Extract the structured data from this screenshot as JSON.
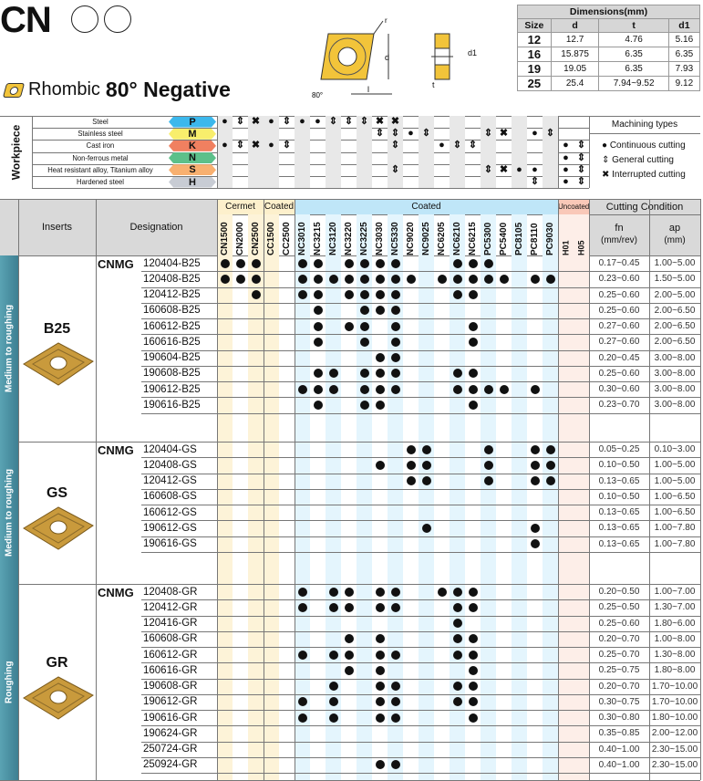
{
  "header": {
    "title": "CN",
    "shape": "Rhombic",
    "angle_label": "80° Negative"
  },
  "diagram": {
    "labels": {
      "r": "r",
      "d": "d",
      "d1": "d1",
      "l": "l",
      "t": "t",
      "angle": "80°"
    }
  },
  "dimensions": {
    "title": "Dimensions(mm)",
    "columns": [
      "Size",
      "d",
      "t",
      "d1"
    ],
    "rows": [
      [
        "12",
        "12.7",
        "4.76",
        "5.16"
      ],
      [
        "16",
        "15.875",
        "6.35",
        "6.35"
      ],
      [
        "19",
        "19.05",
        "6.35",
        "7.93"
      ],
      [
        "25",
        "25.4",
        "7.94~9.52",
        "9.12"
      ]
    ]
  },
  "workpiece": {
    "label": "Workpiece",
    "machining_types_title": "Machining types",
    "legend": [
      {
        "symbol": "●",
        "label": "Continuous cutting"
      },
      {
        "symbol": "⇕",
        "label": "General cutting"
      },
      {
        "symbol": "✖",
        "label": "Interrupted cutting"
      }
    ],
    "rows": [
      {
        "name": "Steel",
        "code": "P",
        "color": "#3cb8ec",
        "marks": {
          "CN1500": "●",
          "CN2000": "⇕",
          "CN2500": "✖",
          "CC1500": "●",
          "CC2500": "⇕",
          "NC3010": "●",
          "NC3215": "●",
          "NC3120": "⇕",
          "NC3220": "⇕",
          "NC3225": "⇕",
          "NC3030": "✖",
          "NC5330": "✖"
        }
      },
      {
        "name": "Stainless steel",
        "code": "M",
        "color": "#f8ee6c",
        "marks": {
          "NC3030": "⇕",
          "NC5330": "⇕",
          "NC9020": "●",
          "NC9025": "⇕",
          "PC5300": "⇕",
          "PC5400": "✖",
          "PC8110": "●",
          "PC9030": "⇕"
        }
      },
      {
        "name": "Cast iron",
        "code": "K",
        "color": "#f08060",
        "marks": {
          "CN1500": "●",
          "CN2000": "⇕",
          "CN2500": "✖",
          "CC1500": "●",
          "CC2500": "⇕",
          "NC5330": "⇕",
          "NC6205": "●",
          "NC6210": "⇕",
          "NC6215": "⇕",
          "H01": "●",
          "H05": "⇕"
        }
      },
      {
        "name": "Non-ferrous metal",
        "code": "N",
        "color": "#5cc08a",
        "marks": {
          "H01": "●",
          "H05": "⇕"
        }
      },
      {
        "name": "Heat resistant alloy, Titanium alloy",
        "code": "S",
        "color": "#f8b070",
        "marks": {
          "NC5330": "⇕",
          "PC5300": "⇕",
          "PC5400": "✖",
          "PC8105": "●",
          "PC8110": "●",
          "H01": "●",
          "H05": "⇕"
        }
      },
      {
        "name": "Hardened steel",
        "code": "H",
        "color": "#c8ccd4",
        "marks": {
          "PC8110": "⇕",
          "H01": "●",
          "H05": "⇕"
        }
      }
    ]
  },
  "table": {
    "headers": {
      "inserts": "Inserts",
      "designation": "Designation",
      "cutting_condition": "Cutting Condition",
      "fn": "fn",
      "fn_unit": "(mm/rev)",
      "ap": "ap",
      "ap_unit": "(mm)"
    },
    "groups": [
      {
        "label": "Cermet",
        "color": "#fdf0cc",
        "grades": [
          "CN1500",
          "CN2000",
          "CN2500"
        ]
      },
      {
        "label": "Coated",
        "color": "#fdf0cc",
        "grades": [
          "CC1500",
          "CC2500"
        ]
      },
      {
        "label": "Coated",
        "color": "#bfe6f8",
        "grades": [
          "NC3010",
          "NC3215",
          "NC3120",
          "NC3220",
          "NC3225",
          "NC3030",
          "NC5330",
          "NC9020",
          "NC9025",
          "NC6205",
          "NC6210",
          "NC6215",
          "PC5300",
          "PC5400",
          "PC8105",
          "PC8110",
          "PC9030"
        ]
      },
      {
        "label": "Uncoated",
        "color": "#f9c8b8",
        "grades": [
          "H01",
          "H05"
        ]
      }
    ],
    "sections": [
      {
        "application": "Medium to roughing",
        "chipbreaker": "B25",
        "prefix": "CNMG",
        "rows": [
          {
            "code": "120404-B25",
            "grades": [
              "CN1500",
              "CN2000",
              "CN2500",
              "NC3010",
              "NC3215",
              "NC3220",
              "NC3225",
              "NC3030",
              "NC5330",
              "NC6210",
              "NC6215",
              "PC5300"
            ],
            "fn": "0.17~0.45",
            "ap": "1.00~5.00"
          },
          {
            "code": "120408-B25",
            "grades": [
              "CN1500",
              "CN2000",
              "CN2500",
              "NC3010",
              "NC3215",
              "NC3120",
              "NC3220",
              "NC3225",
              "NC3030",
              "NC5330",
              "NC9020",
              "NC6205",
              "NC6210",
              "NC6215",
              "PC5300",
              "PC5400",
              "PC8110",
              "PC9030"
            ],
            "fn": "0.23~0.60",
            "ap": "1.50~5.00"
          },
          {
            "code": "120412-B25",
            "grades": [
              "CN2500",
              "NC3010",
              "NC3215",
              "NC3220",
              "NC3225",
              "NC3030",
              "NC5330",
              "NC6210",
              "NC6215"
            ],
            "fn": "0.25~0.60",
            "ap": "2.00~5.00"
          },
          {
            "code": "160608-B25",
            "grades": [
              "NC3215",
              "NC3225",
              "NC3030",
              "NC5330"
            ],
            "fn": "0.25~0.60",
            "ap": "2.00~6.50"
          },
          {
            "code": "160612-B25",
            "grades": [
              "NC3215",
              "NC3220",
              "NC3225",
              "NC5330",
              "NC6215"
            ],
            "fn": "0.27~0.60",
            "ap": "2.00~6.50"
          },
          {
            "code": "160616-B25",
            "grades": [
              "NC3215",
              "NC3225",
              "NC5330",
              "NC6215"
            ],
            "fn": "0.27~0.60",
            "ap": "2.00~6.50"
          },
          {
            "code": "190604-B25",
            "grades": [
              "NC3030",
              "NC5330"
            ],
            "fn": "0.20~0.45",
            "ap": "3.00~8.00"
          },
          {
            "code": "190608-B25",
            "grades": [
              "NC3215",
              "NC3120",
              "NC3225",
              "NC3030",
              "NC5330",
              "NC6210",
              "NC6215"
            ],
            "fn": "0.25~0.60",
            "ap": "3.00~8.00"
          },
          {
            "code": "190612-B25",
            "grades": [
              "NC3010",
              "NC3215",
              "NC3120",
              "NC3225",
              "NC3030",
              "NC5330",
              "NC6210",
              "NC6215",
              "PC5300",
              "PC5400",
              "PC8110"
            ],
            "fn": "0.30~0.60",
            "ap": "3.00~8.00"
          },
          {
            "code": "190616-B25",
            "grades": [
              "NC3215",
              "NC3225",
              "NC3030",
              "NC6215"
            ],
            "fn": "0.23~0.70",
            "ap": "3.00~8.00"
          }
        ]
      },
      {
        "application": "Medium to roughing",
        "chipbreaker": "GS",
        "prefix": "CNMG",
        "rows": [
          {
            "code": "120404-GS",
            "grades": [
              "NC9020",
              "NC9025",
              "PC5300",
              "PC8110",
              "PC9030"
            ],
            "fn": "0.05~0.25",
            "ap": "0.10~3.00"
          },
          {
            "code": "120408-GS",
            "grades": [
              "NC3030",
              "NC9020",
              "NC9025",
              "PC5300",
              "PC8110",
              "PC9030"
            ],
            "fn": "0.10~0.50",
            "ap": "1.00~5.00"
          },
          {
            "code": "120412-GS",
            "grades": [
              "NC9020",
              "NC9025",
              "PC5300",
              "PC8110",
              "PC9030"
            ],
            "fn": "0.13~0.65",
            "ap": "1.00~5.00"
          },
          {
            "code": "160608-GS",
            "grades": [],
            "fn": "0.10~0.50",
            "ap": "1.00~6.50"
          },
          {
            "code": "160612-GS",
            "grades": [],
            "fn": "0.13~0.65",
            "ap": "1.00~6.50"
          },
          {
            "code": "190612-GS",
            "grades": [
              "NC9025",
              "PC8110"
            ],
            "fn": "0.13~0.65",
            "ap": "1.00~7.80"
          },
          {
            "code": "190616-GS",
            "grades": [
              "PC8110"
            ],
            "fn": "0.13~0.65",
            "ap": "1.00~7.80"
          }
        ]
      },
      {
        "application": "Roughing",
        "chipbreaker": "GR",
        "prefix": "CNMG",
        "rows": [
          {
            "code": "120408-GR",
            "grades": [
              "NC3010",
              "NC3120",
              "NC3220",
              "NC3030",
              "NC5330",
              "NC6205",
              "NC6210",
              "NC6215"
            ],
            "fn": "0.20~0.50",
            "ap": "1.00~7.00"
          },
          {
            "code": "120412-GR",
            "grades": [
              "NC3010",
              "NC3120",
              "NC3220",
              "NC3030",
              "NC5330",
              "NC6210",
              "NC6215"
            ],
            "fn": "0.25~0.50",
            "ap": "1.30~7.00"
          },
          {
            "code": "120416-GR",
            "grades": [
              "NC6210"
            ],
            "fn": "0.25~0.60",
            "ap": "1.80~6.00"
          },
          {
            "code": "160608-GR",
            "grades": [
              "NC3220",
              "NC3030",
              "NC6210",
              "NC6215"
            ],
            "fn": "0.20~0.70",
            "ap": "1.00~8.00"
          },
          {
            "code": "160612-GR",
            "grades": [
              "NC3010",
              "NC3120",
              "NC3220",
              "NC3030",
              "NC5330",
              "NC6210",
              "NC6215"
            ],
            "fn": "0.25~0.70",
            "ap": "1.30~8.00"
          },
          {
            "code": "160616-GR",
            "grades": [
              "NC3220",
              "NC3030",
              "NC6215"
            ],
            "fn": "0.25~0.75",
            "ap": "1.80~8.00"
          },
          {
            "code": "190608-GR",
            "grades": [
              "NC3120",
              "NC3030",
              "NC5330",
              "NC6210",
              "NC6215"
            ],
            "fn": "0.20~0.70",
            "ap": "1.70~10.00"
          },
          {
            "code": "190612-GR",
            "grades": [
              "NC3010",
              "NC3120",
              "NC3030",
              "NC5330",
              "NC6210",
              "NC6215"
            ],
            "fn": "0.30~0.75",
            "ap": "1.70~10.00"
          },
          {
            "code": "190616-GR",
            "grades": [
              "NC3010",
              "NC3120",
              "NC3030",
              "NC5330",
              "NC6215"
            ],
            "fn": "0.30~0.80",
            "ap": "1.80~10.00"
          },
          {
            "code": "190624-GR",
            "grades": [],
            "fn": "0.35~0.85",
            "ap": "2.00~12.00"
          },
          {
            "code": "250724-GR",
            "grades": [],
            "fn": "0.40~1.00",
            "ap": "2.30~15.00"
          },
          {
            "code": "250924-GR",
            "grades": [
              "NC3030",
              "NC5330"
            ],
            "fn": "0.40~1.00",
            "ap": "2.30~15.00"
          }
        ]
      }
    ]
  }
}
